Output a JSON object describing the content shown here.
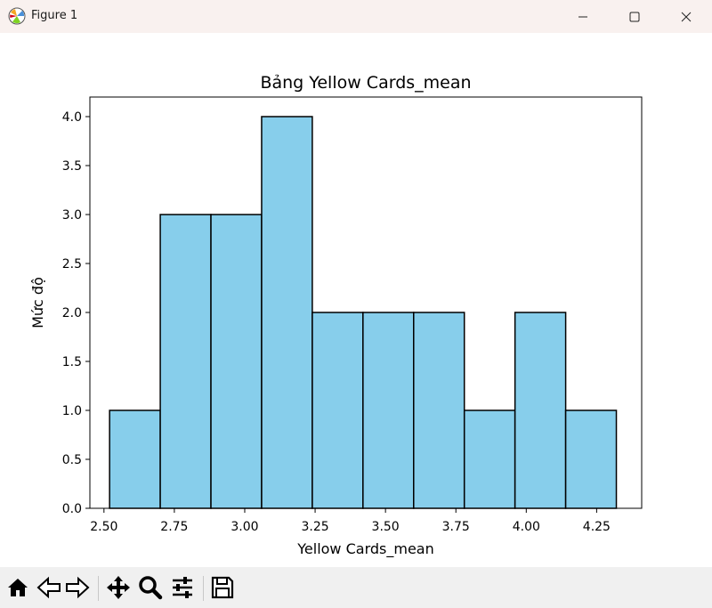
{
  "window": {
    "title": "Figure 1"
  },
  "chart_data": {
    "type": "bar",
    "title": "Bảng Yellow Cards_mean",
    "xlabel": "Yellow Cards_mean",
    "ylabel": "Mức độ",
    "bin_edges": [
      2.52,
      2.7,
      2.88,
      3.06,
      3.24,
      3.42,
      3.6,
      3.78,
      3.96,
      4.14,
      4.32
    ],
    "values": [
      1,
      3,
      3,
      4,
      2,
      2,
      2,
      1,
      2,
      1
    ],
    "xlim": [
      2.45,
      4.41
    ],
    "ylim": [
      0,
      4.2
    ],
    "xticks": [
      "2.50",
      "2.75",
      "3.00",
      "3.25",
      "3.50",
      "3.75",
      "4.00",
      "4.25"
    ],
    "xtick_values": [
      2.5,
      2.75,
      3.0,
      3.25,
      3.5,
      3.75,
      4.0,
      4.25
    ],
    "yticks": [
      "0.0",
      "0.5",
      "1.0",
      "1.5",
      "2.0",
      "2.5",
      "3.0",
      "3.5",
      "4.0"
    ],
    "ytick_values": [
      0,
      0.5,
      1.0,
      1.5,
      2.0,
      2.5,
      3.0,
      3.5,
      4.0
    ],
    "bar_color": "#87ceeb",
    "edge_color": "#000000",
    "grid": false
  },
  "toolbar": {
    "buttons": [
      "home-icon",
      "back-icon",
      "forward-icon",
      "pan-icon",
      "zoom-icon",
      "configure-icon",
      "save-icon"
    ]
  }
}
